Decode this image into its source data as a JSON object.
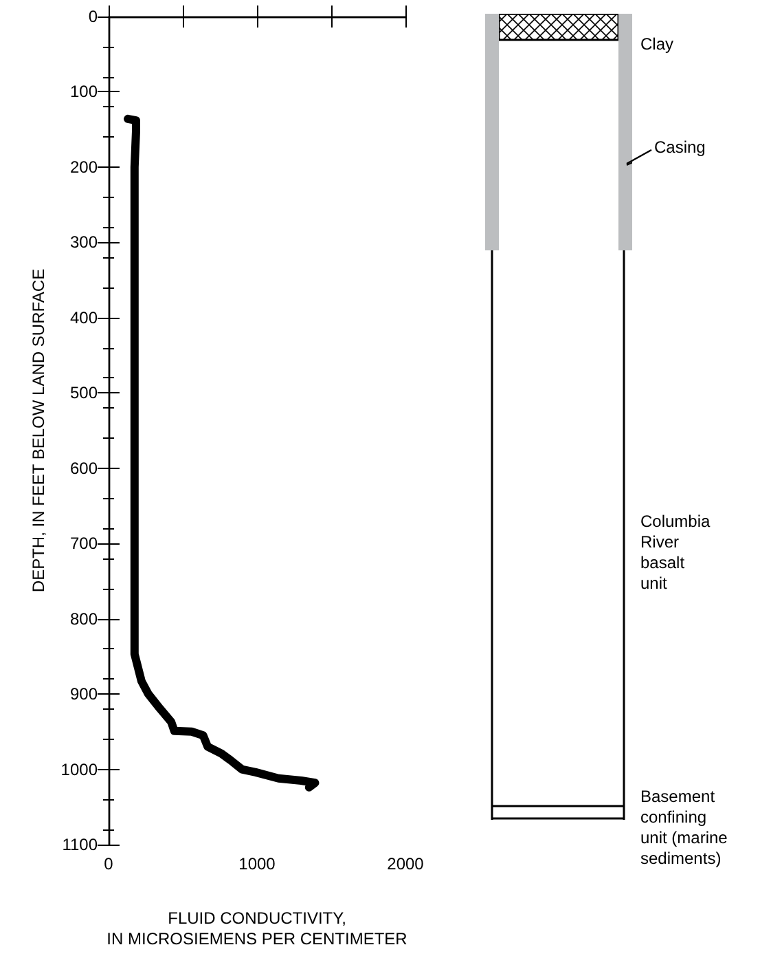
{
  "chart_data": {
    "type": "line",
    "xlabel": "FLUID CONDUCTIVITY,\nIN MICROSIEMENS PER CENTIMETER",
    "ylabel": "DEPTH, IN FEET BELOW LAND SURFACE",
    "series": [
      {
        "color": "#000000",
        "x": [
          130,
          185,
          185,
          175,
          175,
          175,
          175,
          222,
          268,
          345,
          422,
          443,
          560,
          637,
          668,
          760,
          822,
          898,
          991,
          1145,
          1298,
          1391,
          1351
        ],
        "values": [
          136,
          138,
          153,
          200,
          600,
          800,
          847,
          883,
          900,
          919,
          937,
          949,
          950,
          955,
          970,
          979,
          988,
          1000,
          1004,
          1012,
          1015,
          1018,
          1024
        ]
      }
    ],
    "xlim": [
      0,
      2000
    ],
    "xticks": [
      0,
      {
        "value": 500,
        "label": null
      },
      1000,
      {
        "value": 1500,
        "label": null
      },
      2000
    ],
    "ylim": [
      1100,
      0
    ],
    "yticks": [
      0,
      100,
      200,
      300,
      400,
      500,
      600,
      700,
      800,
      900,
      1000,
      1100
    ],
    "grid": false,
    "marker": "none",
    "line_style": "solid",
    "annotations": [
      "Clay",
      "Casing",
      "Columbia\nRiver\nbasalt\nunit",
      "Basement\nconfining\nunit (marine\nsediments)"
    ]
  }
}
